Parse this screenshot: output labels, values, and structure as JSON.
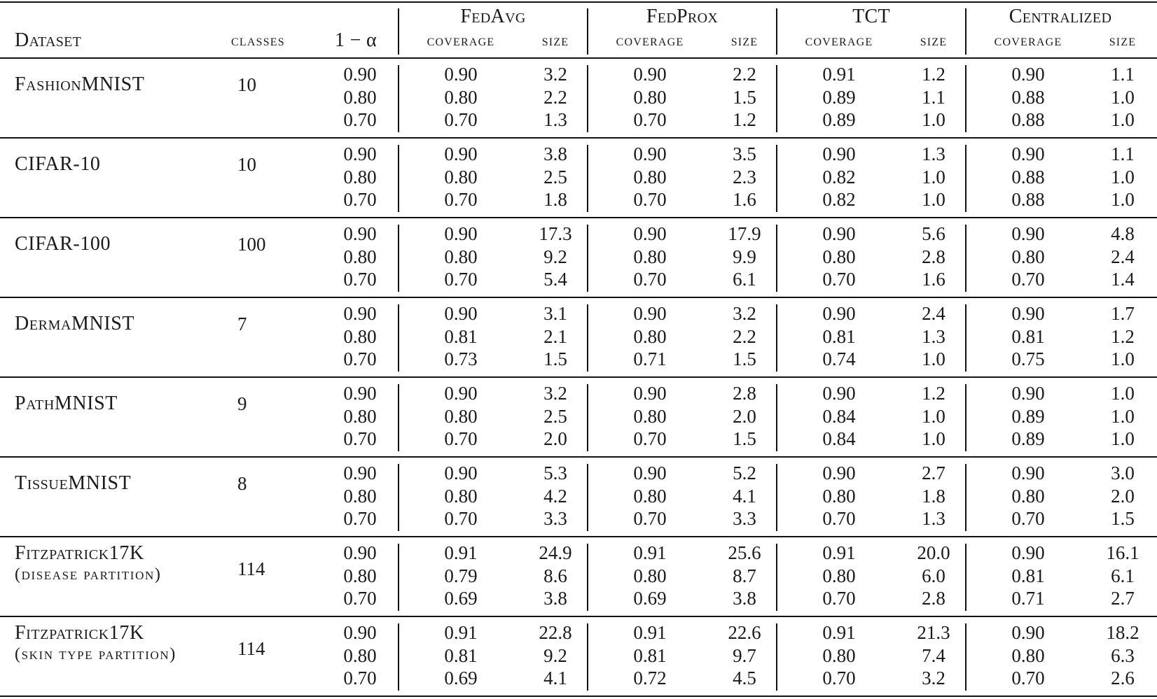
{
  "header": {
    "dataset_label": "Dataset",
    "classes_label": "classes",
    "alpha_label": "1 − α",
    "methods": [
      "FedAvg",
      "FedProx",
      "TCT",
      "Centralized"
    ],
    "coverage_label": "coverage",
    "size_label": "size"
  },
  "rows": [
    {
      "dataset": "FashionMNIST",
      "dataset_sub": "",
      "classes": "10",
      "levels": [
        {
          "alpha": "0.90",
          "values": [
            "0.90",
            "3.2",
            "0.90",
            "2.2",
            "0.91",
            "1.2",
            "0.90",
            "1.1"
          ]
        },
        {
          "alpha": "0.80",
          "values": [
            "0.80",
            "2.2",
            "0.80",
            "1.5",
            "0.89",
            "1.1",
            "0.88",
            "1.0"
          ]
        },
        {
          "alpha": "0.70",
          "values": [
            "0.70",
            "1.3",
            "0.70",
            "1.2",
            "0.89",
            "1.0",
            "0.88",
            "1.0"
          ]
        }
      ]
    },
    {
      "dataset": "CIFAR-10",
      "dataset_sub": "",
      "classes": "10",
      "levels": [
        {
          "alpha": "0.90",
          "values": [
            "0.90",
            "3.8",
            "0.90",
            "3.5",
            "0.90",
            "1.3",
            "0.90",
            "1.1"
          ]
        },
        {
          "alpha": "0.80",
          "values": [
            "0.80",
            "2.5",
            "0.80",
            "2.3",
            "0.82",
            "1.0",
            "0.88",
            "1.0"
          ]
        },
        {
          "alpha": "0.70",
          "values": [
            "0.70",
            "1.8",
            "0.70",
            "1.6",
            "0.82",
            "1.0",
            "0.88",
            "1.0"
          ]
        }
      ]
    },
    {
      "dataset": "CIFAR-100",
      "dataset_sub": "",
      "classes": "100",
      "levels": [
        {
          "alpha": "0.90",
          "values": [
            "0.90",
            "17.3",
            "0.90",
            "17.9",
            "0.90",
            "5.6",
            "0.90",
            "4.8"
          ]
        },
        {
          "alpha": "0.80",
          "values": [
            "0.80",
            "9.2",
            "0.80",
            "9.9",
            "0.80",
            "2.8",
            "0.80",
            "2.4"
          ]
        },
        {
          "alpha": "0.70",
          "values": [
            "0.70",
            "5.4",
            "0.70",
            "6.1",
            "0.70",
            "1.6",
            "0.70",
            "1.4"
          ]
        }
      ]
    },
    {
      "dataset": "DermaMNIST",
      "dataset_sub": "",
      "classes": "7",
      "levels": [
        {
          "alpha": "0.90",
          "values": [
            "0.90",
            "3.1",
            "0.90",
            "3.2",
            "0.90",
            "2.4",
            "0.90",
            "1.7"
          ]
        },
        {
          "alpha": "0.80",
          "values": [
            "0.81",
            "2.1",
            "0.80",
            "2.2",
            "0.81",
            "1.3",
            "0.81",
            "1.2"
          ]
        },
        {
          "alpha": "0.70",
          "values": [
            "0.73",
            "1.5",
            "0.71",
            "1.5",
            "0.74",
            "1.0",
            "0.75",
            "1.0"
          ]
        }
      ]
    },
    {
      "dataset": "PathMNIST",
      "dataset_sub": "",
      "classes": "9",
      "levels": [
        {
          "alpha": "0.90",
          "values": [
            "0.90",
            "3.2",
            "0.90",
            "2.8",
            "0.90",
            "1.2",
            "0.90",
            "1.0"
          ]
        },
        {
          "alpha": "0.80",
          "values": [
            "0.80",
            "2.5",
            "0.80",
            "2.0",
            "0.84",
            "1.0",
            "0.89",
            "1.0"
          ]
        },
        {
          "alpha": "0.70",
          "values": [
            "0.70",
            "2.0",
            "0.70",
            "1.5",
            "0.84",
            "1.0",
            "0.89",
            "1.0"
          ]
        }
      ]
    },
    {
      "dataset": "TissueMNIST",
      "dataset_sub": "",
      "classes": "8",
      "levels": [
        {
          "alpha": "0.90",
          "values": [
            "0.90",
            "5.3",
            "0.90",
            "5.2",
            "0.90",
            "2.7",
            "0.90",
            "3.0"
          ]
        },
        {
          "alpha": "0.80",
          "values": [
            "0.80",
            "4.2",
            "0.80",
            "4.1",
            "0.80",
            "1.8",
            "0.80",
            "2.0"
          ]
        },
        {
          "alpha": "0.70",
          "values": [
            "0.70",
            "3.3",
            "0.70",
            "3.3",
            "0.70",
            "1.3",
            "0.70",
            "1.5"
          ]
        }
      ]
    },
    {
      "dataset": "Fitzpatrick17K",
      "dataset_sub": "(disease partition)",
      "classes": "114",
      "levels": [
        {
          "alpha": "0.90",
          "values": [
            "0.91",
            "24.9",
            "0.91",
            "25.6",
            "0.91",
            "20.0",
            "0.90",
            "16.1"
          ]
        },
        {
          "alpha": "0.80",
          "values": [
            "0.79",
            "8.6",
            "0.80",
            "8.7",
            "0.80",
            "6.0",
            "0.81",
            "6.1"
          ]
        },
        {
          "alpha": "0.70",
          "values": [
            "0.69",
            "3.8",
            "0.69",
            "3.8",
            "0.70",
            "2.8",
            "0.71",
            "2.7"
          ]
        }
      ]
    },
    {
      "dataset": "Fitzpatrick17K",
      "dataset_sub": "(skin type partition)",
      "classes": "114",
      "levels": [
        {
          "alpha": "0.90",
          "values": [
            "0.91",
            "22.8",
            "0.91",
            "22.6",
            "0.91",
            "21.3",
            "0.90",
            "18.2"
          ]
        },
        {
          "alpha": "0.80",
          "values": [
            "0.81",
            "9.2",
            "0.81",
            "9.7",
            "0.80",
            "7.4",
            "0.80",
            "6.3"
          ]
        },
        {
          "alpha": "0.70",
          "values": [
            "0.69",
            "4.1",
            "0.72",
            "4.5",
            "0.70",
            "3.2",
            "0.70",
            "2.6"
          ]
        }
      ]
    }
  ]
}
